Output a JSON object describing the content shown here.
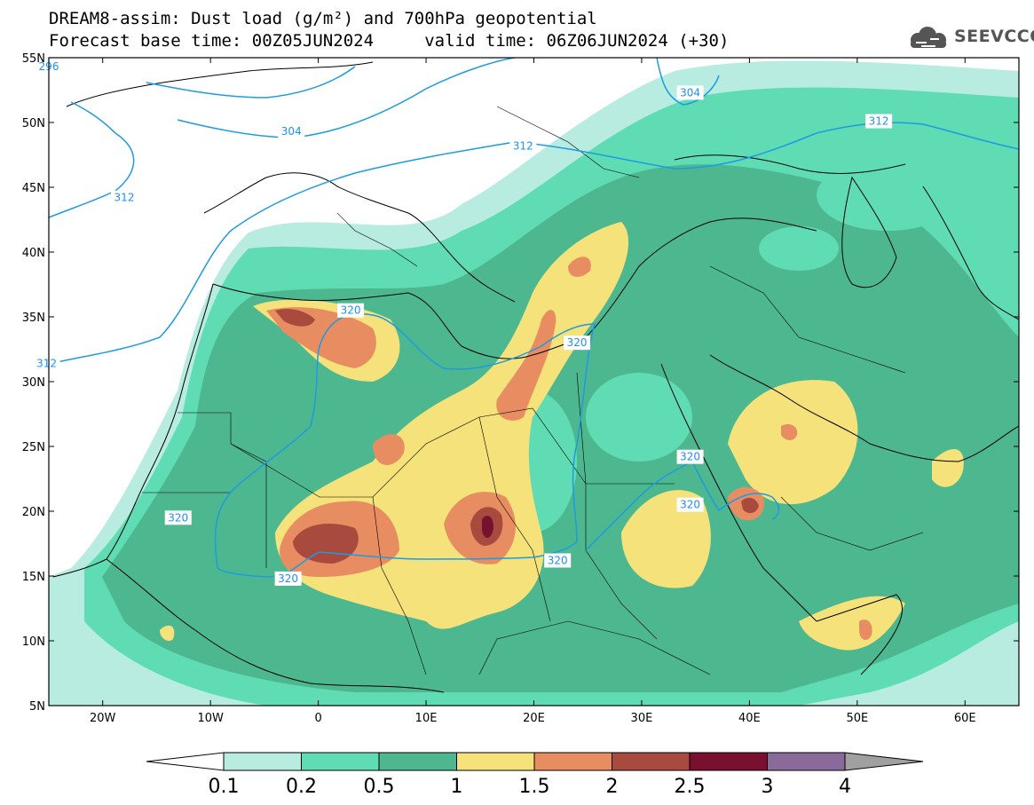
{
  "title": {
    "line1": "DREAM8-assim: Dust load (g/m²) and 700hPa geopotential",
    "line2": "Forecast base time: 00Z05JUN2024     valid time: 06Z06JUN2024 (+30)"
  },
  "logo": {
    "text": "SEEVCCC",
    "icon": "cloud-icon"
  },
  "axes": {
    "lon_min": -25,
    "lon_max": 65,
    "lat_min": 5,
    "lat_max": 55,
    "lon_ticks": [
      {
        "v": -20,
        "label": "20W"
      },
      {
        "v": -10,
        "label": "10W"
      },
      {
        "v": 0,
        "label": "0"
      },
      {
        "v": 10,
        "label": "10E"
      },
      {
        "v": 20,
        "label": "20E"
      },
      {
        "v": 30,
        "label": "30E"
      },
      {
        "v": 40,
        "label": "40E"
      },
      {
        "v": 50,
        "label": "50E"
      },
      {
        "v": 60,
        "label": "60E"
      }
    ],
    "lat_ticks": [
      {
        "v": 55,
        "label": "55N"
      },
      {
        "v": 50,
        "label": "50N"
      },
      {
        "v": 45,
        "label": "45N"
      },
      {
        "v": 40,
        "label": "40N"
      },
      {
        "v": 35,
        "label": "35N"
      },
      {
        "v": 30,
        "label": "30N"
      },
      {
        "v": 25,
        "label": "25N"
      },
      {
        "v": 20,
        "label": "20N"
      },
      {
        "v": 15,
        "label": "15N"
      },
      {
        "v": 10,
        "label": "10N"
      },
      {
        "v": 5,
        "label": "5N"
      }
    ]
  },
  "colorbar": {
    "levels": [
      {
        "label": "0.1"
      },
      {
        "label": "0.2"
      },
      {
        "label": "0.5"
      },
      {
        "label": "1"
      },
      {
        "label": "1.5"
      },
      {
        "label": "2"
      },
      {
        "label": "2.5"
      },
      {
        "label": "3"
      },
      {
        "label": "4"
      }
    ],
    "colors": [
      "#ffffff",
      "#b8ece0",
      "#5fdcb4",
      "#4db88f",
      "#f5e27a",
      "#e88d62",
      "#a94a3e",
      "#7a1030",
      "#8a6a9a",
      "#a0a0a0"
    ]
  },
  "contours": {
    "labels": [
      {
        "text": "296",
        "lon": -25,
        "lat": 54.3
      },
      {
        "text": "304",
        "lon": -2.5,
        "lat": 49.3
      },
      {
        "text": "312",
        "lon": -18,
        "lat": 44.2
      },
      {
        "text": "312",
        "lon": 19,
        "lat": 48.2
      },
      {
        "text": "304",
        "lon": 34.5,
        "lat": 52.3
      },
      {
        "text": "312",
        "lon": 52,
        "lat": 50.1
      },
      {
        "text": "312",
        "lon": -25.2,
        "lat": 31.4
      },
      {
        "text": "320",
        "lon": 3,
        "lat": 35.5
      },
      {
        "text": "320",
        "lon": 24,
        "lat": 33
      },
      {
        "text": "320",
        "lon": -13,
        "lat": 19.5
      },
      {
        "text": "320",
        "lon": -2.8,
        "lat": 14.8
      },
      {
        "text": "320",
        "lon": 22.2,
        "lat": 16.2
      },
      {
        "text": "320",
        "lon": 34.5,
        "lat": 24.2
      },
      {
        "text": "320",
        "lon": 34.5,
        "lat": 20.5
      }
    ]
  }
}
